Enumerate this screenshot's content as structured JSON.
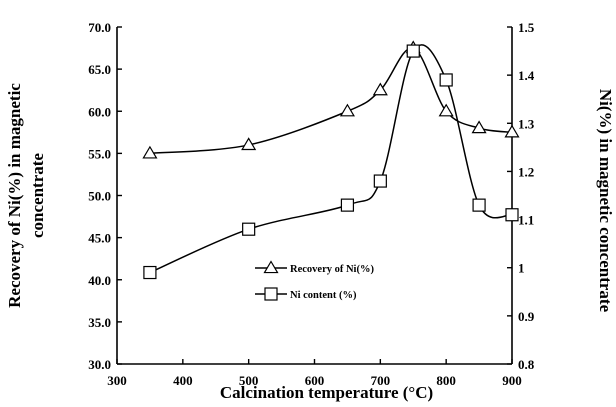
{
  "chart_data": {
    "type": "line",
    "xlabel": "Calcination temperature (°C)",
    "ylabel_left": [
      "Recovery of Ni(%) in magnetic",
      "concentrate"
    ],
    "ylabel_right": "Ni(%) in magnetic concentrate",
    "xlim": [
      300,
      900
    ],
    "ylim_left": [
      30,
      70
    ],
    "ylim_right": [
      0.8,
      1.5
    ],
    "x_ticks": [
      "300",
      "400",
      "500",
      "600",
      "700",
      "800",
      "900"
    ],
    "y_left_ticks": [
      "30.0",
      "35.0",
      "40.0",
      "45.0",
      "50.0",
      "55.0",
      "60.0",
      "65.0",
      "70.0"
    ],
    "y_right_ticks": [
      "0.8",
      "0.9",
      "1",
      "1.1",
      "1.2",
      "1.3",
      "1.4",
      "1.5"
    ],
    "legend_position": "center",
    "series": [
      {
        "name": "Recovery of Ni(%)",
        "axis": "left",
        "marker": "triangle",
        "x": [
          350,
          500,
          650,
          700,
          750,
          800,
          850,
          900
        ],
        "values": [
          55.0,
          56.0,
          60.0,
          62.5,
          67.5,
          60.0,
          58.0,
          57.5
        ]
      },
      {
        "name": "Ni content (%)",
        "axis": "right",
        "marker": "square",
        "x": [
          350,
          500,
          650,
          700,
          750,
          800,
          850,
          900
        ],
        "values": [
          0.99,
          1.08,
          1.13,
          1.18,
          1.45,
          1.39,
          1.13,
          1.11
        ]
      }
    ]
  }
}
